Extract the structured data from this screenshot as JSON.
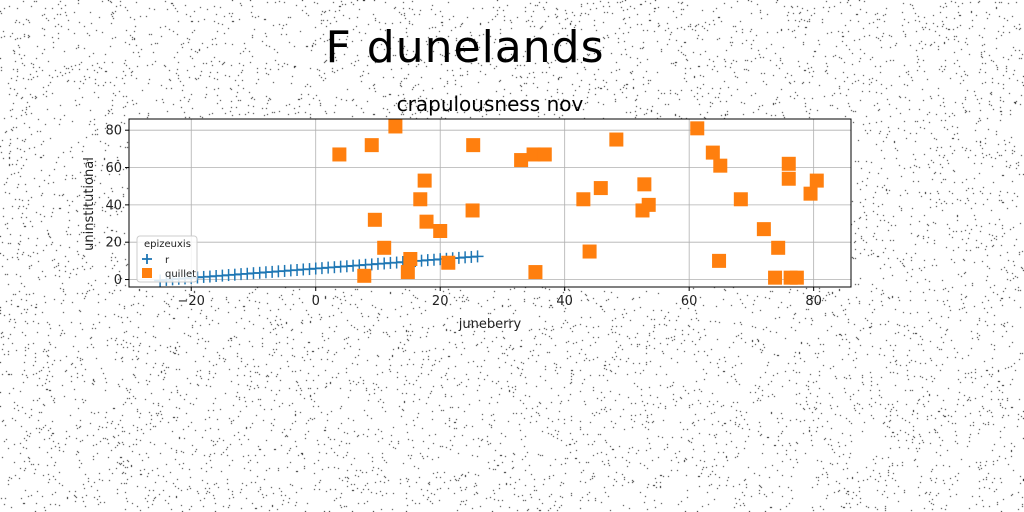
{
  "figure_title": "F dunelands",
  "chart_data": {
    "type": "scatter",
    "title": "crapulousness nov",
    "xlabel": "juneberry",
    "ylabel": "uninstitutional",
    "xlim": [
      -30,
      86
    ],
    "ylim": [
      -4,
      86
    ],
    "xticks": [
      -20,
      0,
      20,
      40,
      60,
      80
    ],
    "yticks": [
      0,
      20,
      40,
      60,
      80
    ],
    "grid": true,
    "legend": {
      "title": "epizeuxis",
      "placement": "lower-left"
    },
    "series": [
      {
        "name": "r",
        "marker": "plus",
        "color": "#1f77b4",
        "x": [
          -25,
          -24,
          -23,
          -22,
          -21,
          -20,
          -19,
          -18,
          -17,
          -16,
          -15,
          -14,
          -13,
          -12,
          -11,
          -10,
          -9,
          -8,
          -7,
          -6,
          -5,
          -4,
          -3,
          -2,
          -1,
          0,
          1,
          2,
          3,
          4,
          5,
          6,
          7,
          8,
          9,
          10,
          11,
          12,
          13,
          14,
          15,
          16,
          17,
          18,
          19,
          20,
          21,
          22,
          23,
          24,
          25,
          26
        ],
        "y": [
          -0.5,
          -0.2,
          0.1,
          0.4,
          0.6,
          0.9,
          1.1,
          1.4,
          1.6,
          1.9,
          2.1,
          2.4,
          2.6,
          2.9,
          3.1,
          3.4,
          3.6,
          3.9,
          4.1,
          4.4,
          4.6,
          4.9,
          5.1,
          5.4,
          5.6,
          5.9,
          6.1,
          6.4,
          6.6,
          6.9,
          7.1,
          7.4,
          7.6,
          7.9,
          8.1,
          8.4,
          8.6,
          8.9,
          9.1,
          9.4,
          9.6,
          9.9,
          10.1,
          10.4,
          10.6,
          10.9,
          11.1,
          11.4,
          11.6,
          11.9,
          12.1,
          12.4
        ]
      },
      {
        "name": "quillet",
        "marker": "square",
        "color": "#ff7f0e",
        "x": [
          3.8,
          9,
          9.5,
          11,
          12.8,
          7.8,
          14.8,
          15.2,
          16.8,
          17.5,
          17.8,
          20,
          21.3,
          25.3,
          25.2,
          33,
          35,
          35.3,
          36.8,
          43,
          44,
          45.8,
          48.3,
          52.5,
          52.8,
          53.5,
          61.3,
          63.8,
          64.8,
          65,
          68.3,
          72,
          73.8,
          74.3,
          76,
          76,
          76.3,
          77.3,
          79.5,
          80.5
        ],
        "y": [
          67,
          72,
          32,
          17,
          82,
          2,
          4,
          11,
          43,
          53,
          31,
          26,
          9,
          72,
          37,
          64,
          67,
          4,
          67,
          43,
          15,
          49,
          75,
          37,
          51,
          40,
          81,
          68,
          10,
          61,
          43,
          27,
          1,
          17,
          62,
          54,
          1,
          1,
          46,
          53
        ]
      }
    ]
  }
}
